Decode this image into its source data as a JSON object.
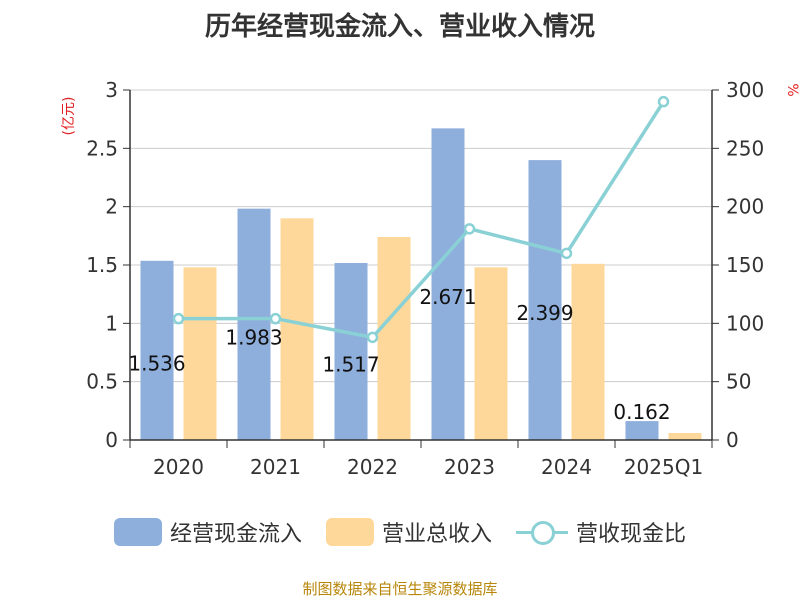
{
  "title": "历年经营现金流入、营业收入情况",
  "footer": "制图数据来自恒生聚源数据库",
  "colors": {
    "cash_inflow": "#8eaedc",
    "revenue": "#fdd89a",
    "ratio": "#8ad1d6",
    "unit": "#e02020",
    "footer": "#b8860b"
  },
  "chart_data": {
    "type": "bar",
    "title": "历年经营现金流入、营业收入情况",
    "categories": [
      "2020",
      "2021",
      "2022",
      "2023",
      "2024",
      "2025Q1"
    ],
    "y_left": {
      "unit": "(亿元)",
      "range": [
        0,
        3
      ],
      "ticks": [
        "0",
        "0.5",
        "1",
        "1.5",
        "2",
        "2.5",
        "3"
      ]
    },
    "y_right": {
      "unit": "%",
      "range": [
        0,
        300
      ],
      "ticks": [
        "0",
        "50",
        "100",
        "150",
        "200",
        "250",
        "300"
      ]
    },
    "grid": true,
    "legend_position": "bottom",
    "series": [
      {
        "name": "经营现金流入",
        "type": "bar",
        "axis": "left",
        "values": [
          1.536,
          1.983,
          1.517,
          2.671,
          2.399,
          0.162
        ],
        "labels": [
          "1.536",
          "1.983",
          "1.517",
          "2.671",
          "2.399",
          "0.162"
        ]
      },
      {
        "name": "营业总收入",
        "type": "bar",
        "axis": "left",
        "values": [
          1.48,
          1.9,
          1.74,
          1.48,
          1.51,
          0.06
        ]
      },
      {
        "name": "营收现金比",
        "type": "line",
        "axis": "right",
        "values": [
          104,
          104,
          88,
          181,
          160,
          290
        ]
      }
    ]
  }
}
